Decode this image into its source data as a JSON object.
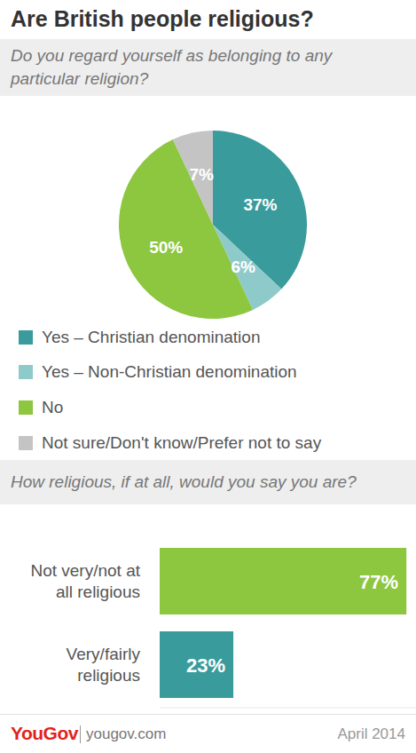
{
  "header": {
    "title": "Are British people religious?"
  },
  "chart_data": [
    {
      "type": "pie",
      "title": "Do you regard yourself as belonging to any particular religion?",
      "categories": [
        "Yes – Christian denomination",
        "Yes – Non-Christian denomination",
        "No",
        "Not sure/Don't know/Prefer not to say"
      ],
      "values": [
        37,
        6,
        50,
        7
      ],
      "value_labels": [
        "37%",
        "6%",
        "50%",
        "7%"
      ],
      "colors": [
        "#3a9b9c",
        "#8fcaca",
        "#8dc63f",
        "#c4c4c4"
      ],
      "data_labels": true,
      "legend": "bottom"
    },
    {
      "type": "bar",
      "orientation": "horizontal",
      "title": "How religious, if at all, would you say you are?",
      "categories": [
        "Not very/not at all religious",
        "Very/fairly religious"
      ],
      "values": [
        77,
        23
      ],
      "value_labels": [
        "77%",
        "23%"
      ],
      "colors": [
        "#8dc63f",
        "#3a9b9c"
      ],
      "xlim": [
        0,
        80
      ],
      "data_labels": true,
      "tick_labels": "y"
    }
  ],
  "footer": {
    "brand": "YouGov",
    "source": "yougov.com",
    "date": "April 2014"
  }
}
